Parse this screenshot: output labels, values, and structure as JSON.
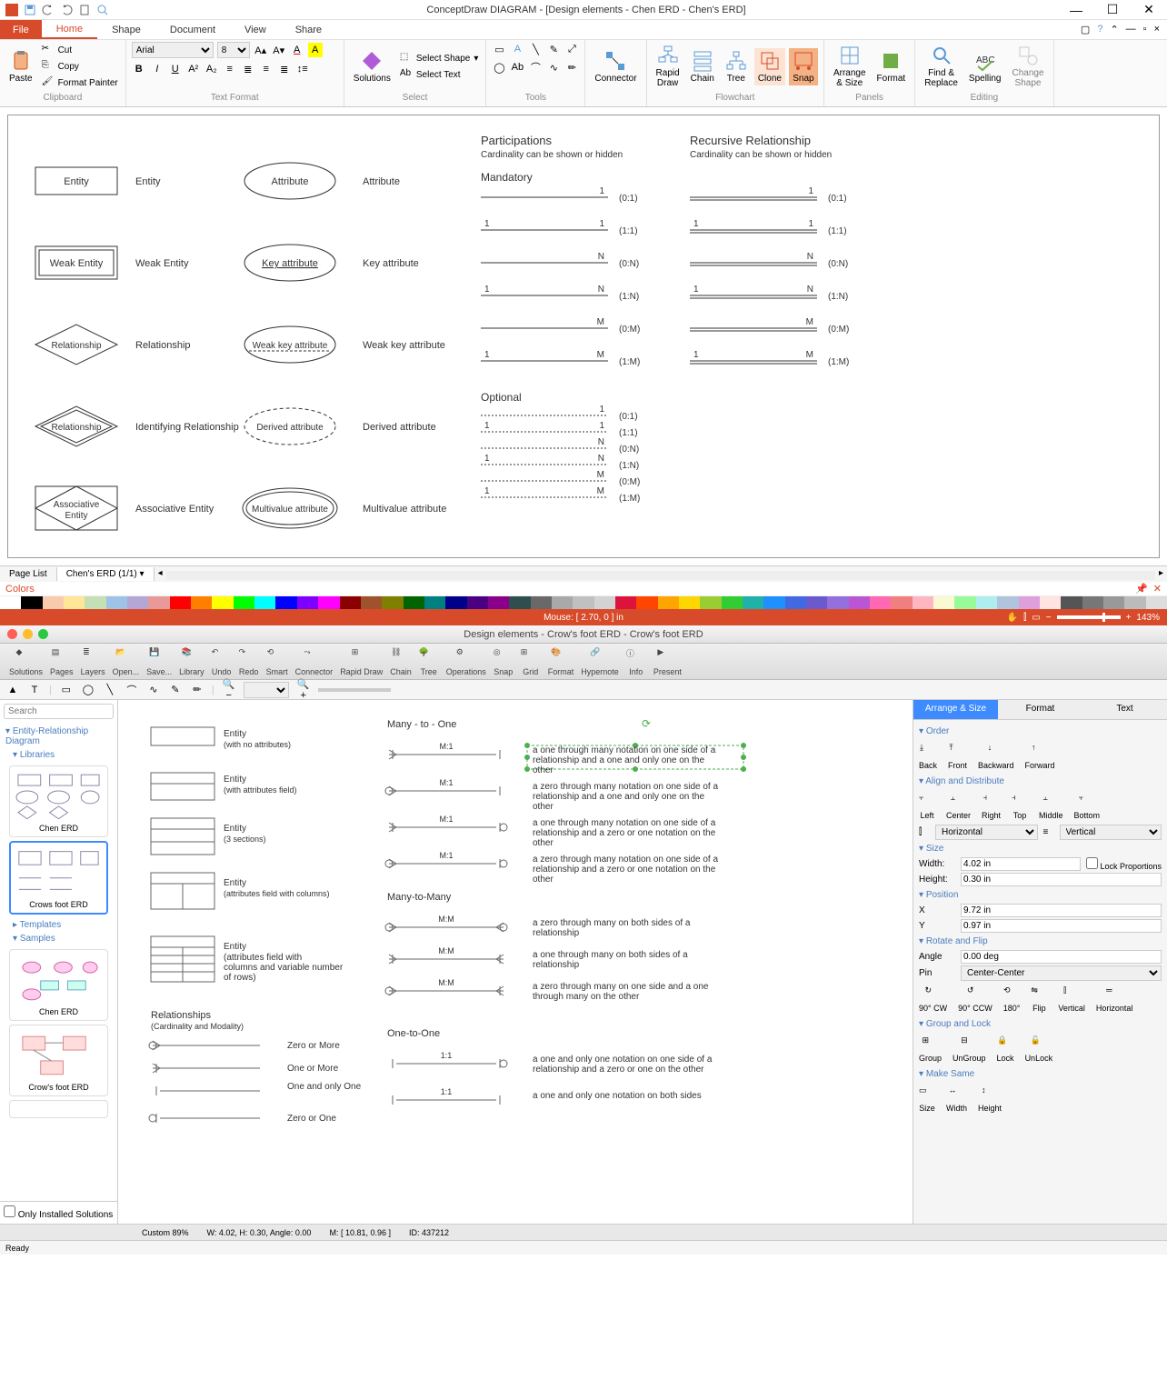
{
  "top": {
    "title": "ConceptDraw DIAGRAM - [Design elements - Chen ERD - Chen's ERD]",
    "tabs": {
      "file": "File",
      "home": "Home",
      "shape": "Shape",
      "document": "Document",
      "view": "View",
      "share": "Share"
    },
    "clipboard": {
      "paste": "Paste",
      "cut": "Cut",
      "copy": "Copy",
      "painter": "Format Painter",
      "label": "Clipboard"
    },
    "textformat": {
      "font": "Arial",
      "size": "8",
      "label": "Text Format"
    },
    "select": {
      "solutions": "Solutions",
      "select_shape": "Select Shape",
      "select_text": "Select Text",
      "label": "Select"
    },
    "tools": {
      "connector": "Connector",
      "label": "Tools"
    },
    "flowchart": {
      "rapid": "Rapid\nDraw",
      "chain": "Chain",
      "tree": "Tree",
      "clone": "Clone",
      "snap": "Snap",
      "label": "Flowchart"
    },
    "panels": {
      "arrange": "Arrange\n& Size",
      "format": "Format",
      "label": "Panels"
    },
    "editing": {
      "find": "Find &\nReplace",
      "spelling": "Spelling",
      "change": "Change\nShape",
      "label": "Editing"
    },
    "pagelist": "Page List",
    "page_tab": "Chen's ERD (1/1)",
    "colors_label": "Colors",
    "color_swatches": [
      "#ffffff",
      "#000000",
      "#f8cbad",
      "#ffe699",
      "#c5e0b4",
      "#9dc3e6",
      "#b4a7d6",
      "#ea9999",
      "#ff0000",
      "#ff7f00",
      "#ffff00",
      "#00ff00",
      "#00ffff",
      "#0000ff",
      "#7f00ff",
      "#ff00ff",
      "#8b0000",
      "#a0522d",
      "#808000",
      "#006400",
      "#008080",
      "#00008b",
      "#4b0082",
      "#8b008b",
      "#2f4f4f",
      "#696969",
      "#a9a9a9",
      "#c0c0c0",
      "#d3d3d3",
      "#dc143c",
      "#ff4500",
      "#ffa500",
      "#ffd700",
      "#9acd32",
      "#32cd32",
      "#20b2aa",
      "#1e90ff",
      "#4169e1",
      "#6a5acd",
      "#9370db",
      "#ba55d3",
      "#ff69b4",
      "#f08080",
      "#ffb6c1",
      "#fafad2",
      "#98fb98",
      "#afeeee",
      "#b0c4de",
      "#dda0dd",
      "#ffe4e1",
      "#555555",
      "#777777",
      "#999999",
      "#bbbbbb",
      "#dddddd"
    ],
    "mouse_status": "Mouse: [ 2.70, 0 ] in",
    "zoom": "143%",
    "canvas": {
      "participations_title": "Participations",
      "participations_sub": "Cardinality can be shown or hidden",
      "recursive_title": "Recursive Relationship",
      "recursive_sub": "Cardinality can be shown or hidden",
      "mandatory": "Mandatory",
      "optional": "Optional",
      "shapes": {
        "entity": "Entity",
        "weak_entity": "Weak Entity",
        "relationship": "Relationship",
        "identifying": "Identifying Relationship",
        "associative": "Associative\nEntity",
        "associative_lbl": "Associative Entity",
        "attribute": "Attribute",
        "key_attr": "Key attribute",
        "weak_key": "Weak key attribute",
        "derived": "Derived attribute",
        "multivalue": "Multivalue attribute"
      },
      "card_rows_mandatory": [
        {
          "l": "",
          "r": "1",
          "t": "(0:1)"
        },
        {
          "l": "1",
          "r": "1",
          "t": "(1:1)"
        },
        {
          "l": "",
          "r": "N",
          "t": "(0:N)"
        },
        {
          "l": "1",
          "r": "N",
          "t": "(1:N)"
        },
        {
          "l": "",
          "r": "M",
          "t": "(0:M)"
        },
        {
          "l": "1",
          "r": "M",
          "t": "(1:M)"
        }
      ],
      "card_rows_optional": [
        {
          "l": "",
          "r": "1",
          "t": "(0:1)"
        },
        {
          "l": "1",
          "r": "1",
          "t": "(1:1)"
        },
        {
          "l": "",
          "r": "N",
          "t": "(0:N)"
        },
        {
          "l": "1",
          "r": "N",
          "t": "(1:N)"
        },
        {
          "l": "",
          "r": "M",
          "t": "(0:M)"
        },
        {
          "l": "1",
          "r": "M",
          "t": "(1:M)"
        }
      ],
      "stroke": "#333333",
      "text_color": "#333333"
    }
  },
  "bottom": {
    "title": "Design elements - Crow's foot ERD - Crow's foot ERD",
    "toolbar": [
      "Solutions",
      "Pages",
      "Layers",
      "Open...",
      "Save...",
      "Library",
      "Undo",
      "Redo",
      "Smart",
      "Connector",
      "Rapid Draw",
      "Chain",
      "Tree",
      "Operations",
      "Snap",
      "Grid",
      "Format",
      "Hypernote",
      "Info",
      "Present"
    ],
    "search_placeholder": "Search",
    "tree": {
      "hd": "Entity-Relationship Diagram",
      "libraries": "Libraries",
      "chen": "Chen ERD",
      "crows": "Crows foot ERD",
      "templates": "Templates",
      "samples": "Samples",
      "sample_chen": "Chen ERD",
      "sample_crows": "Crow's foot ERD"
    },
    "only_installed": "Only Installed Solutions",
    "center": {
      "entity_no_attr_title": "Entity",
      "entity_no_attr_sub": "(with no attributes)",
      "entity_attr_title": "Entity",
      "entity_attr_sub": "(with attributes field)",
      "entity_3_title": "Entity",
      "entity_3_sub": "(3 sections)",
      "entity_cols_title": "Entity",
      "entity_cols_sub": "(attributes field with columns)",
      "entity_rows_title": "Entity",
      "entity_rows_sub": "(attributes field with columns and variable number of rows)",
      "relationships_title": "Relationships",
      "relationships_sub": "(Cardinality and Modality)",
      "zero_or_more": "Zero or More",
      "one_or_more": "One or More",
      "one_only": "One and only One",
      "zero_or_one": "Zero or One",
      "many_to_one": "Many - to - One",
      "many_to_many": "Many-to-Many",
      "one_to_one": "One-to-One",
      "m1": "M:1",
      "mm": "M:M",
      "oo": "1:1",
      "desc_m1_a": "a one through many notation on one side of a relationship and a one and only one on the other",
      "desc_m1_b": "a zero through many notation on one side of a relationship and a one and only one on the other",
      "desc_m1_c": "a one through many notation on one side of a relationship and a zero or one notation on the other",
      "desc_m1_d": "a zero through many notation on one side of a relationship and a zero or one notation on the other",
      "desc_mm_a": "a zero through many on both sides of a relationship",
      "desc_mm_b": "a one through many on both sides of a relationship",
      "desc_mm_c": "a zero through many on one side and a one through many on the other",
      "desc_oo_a": "a one and only one notation on one side of a relationship and a zero or one on the other",
      "desc_oo_b": "a one and only one notation on both sides"
    },
    "right": {
      "tabs": {
        "arrange": "Arrange & Size",
        "format": "Format",
        "text": "Text"
      },
      "order": "Order",
      "order_btns": [
        "Back",
        "Front",
        "Backward",
        "Forward"
      ],
      "align": "Align and Distribute",
      "align_btns": [
        "Left",
        "Center",
        "Right",
        "Top",
        "Middle",
        "Bottom"
      ],
      "horizontal": "Horizontal",
      "vertical": "Vertical",
      "size": "Size",
      "width_lbl": "Width:",
      "width_val": "4.02 in",
      "height_lbl": "Height:",
      "height_val": "0.30 in",
      "lock_prop": "Lock Proportions",
      "position": "Position",
      "x_lbl": "X",
      "x_val": "9.72 in",
      "y_lbl": "Y",
      "y_val": "0.97 in",
      "rotate": "Rotate and Flip",
      "angle_lbl": "Angle",
      "angle_val": "0.00 deg",
      "pin_lbl": "Pin",
      "pin_val": "Center-Center",
      "rotate_btns": [
        "90° CW",
        "90° CCW",
        "180°",
        "Flip",
        "Vertical",
        "Horizontal"
      ],
      "group": "Group and Lock",
      "group_btns": [
        "Group",
        "UnGroup",
        "Lock",
        "UnLock"
      ],
      "make_same": "Make Same",
      "same_btns": [
        "Size",
        "Width",
        "Height"
      ]
    },
    "status": {
      "custom": "Custom 89%",
      "wh": "W: 4.02, H: 0.30, Angle: 0.00",
      "m": "M: [ 10.81, 0.96 ]",
      "id": "ID: 437212",
      "ready": "Ready"
    }
  }
}
